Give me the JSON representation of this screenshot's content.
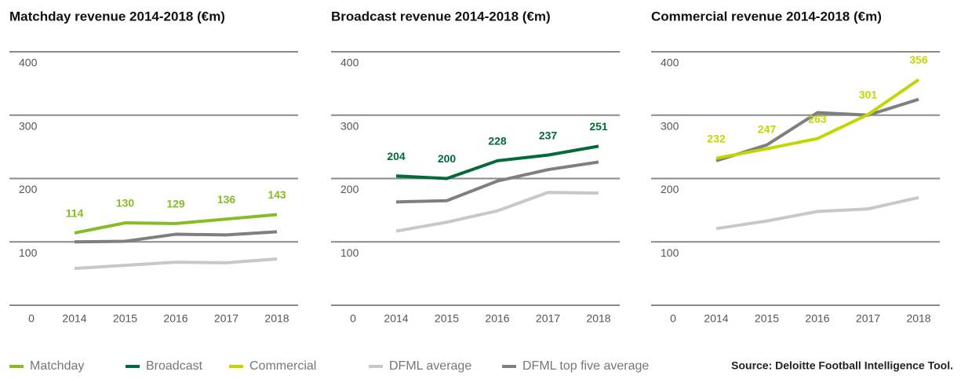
{
  "chart_data": [
    {
      "type": "line",
      "title": "Matchday revenue 2014-2018 (€m)",
      "categories": [
        "2014",
        "2015",
        "2016",
        "2017",
        "2018"
      ],
      "ylim": [
        0,
        400
      ],
      "yticks": [
        0,
        100,
        200,
        300,
        400
      ],
      "grid": true,
      "series": [
        {
          "name": "Matchday",
          "color": "#86bc25",
          "values": [
            114,
            130,
            129,
            136,
            143
          ],
          "labels": true
        },
        {
          "name": "DFML average",
          "color": "#c8c8c8",
          "values": [
            58,
            63,
            68,
            67,
            73
          ]
        },
        {
          "name": "DFML top five average",
          "color": "#7f7f7f",
          "values": [
            100,
            101,
            112,
            111,
            116
          ]
        }
      ]
    },
    {
      "type": "line",
      "title": "Broadcast revenue 2014-2018 (€m)",
      "categories": [
        "2014",
        "2015",
        "2016",
        "2017",
        "2018"
      ],
      "ylim": [
        0,
        400
      ],
      "yticks": [
        0,
        100,
        200,
        300,
        400
      ],
      "grid": true,
      "series": [
        {
          "name": "Broadcast",
          "color": "#046a38",
          "values": [
            204,
            200,
            228,
            237,
            251
          ],
          "labels": true
        },
        {
          "color": "#c8c8c8",
          "values": [
            117,
            131,
            149,
            178,
            177
          ]
        },
        {
          "color": "#7f7f7f",
          "values": [
            163,
            165,
            196,
            214,
            226
          ]
        }
      ]
    },
    {
      "type": "line",
      "title": "Commercial revenue 2014-2018 (€m)",
      "categories": [
        "2014",
        "2015",
        "2016",
        "2017",
        "2018"
      ],
      "ylim": [
        0,
        400
      ],
      "yticks": [
        0,
        100,
        200,
        300,
        400
      ],
      "grid": true,
      "series": [
        {
          "name": "Commercial",
          "color": "#c4d600",
          "values": [
            232,
            247,
            263,
            301,
            356
          ],
          "labels": true
        },
        {
          "color": "#c8c8c8",
          "values": [
            121,
            133,
            148,
            152,
            170
          ]
        },
        {
          "color": "#7f7f7f",
          "values": [
            228,
            253,
            304,
            300,
            325
          ]
        }
      ]
    }
  ],
  "source": "Source: Deloitte Football Intelligence Tool."
}
